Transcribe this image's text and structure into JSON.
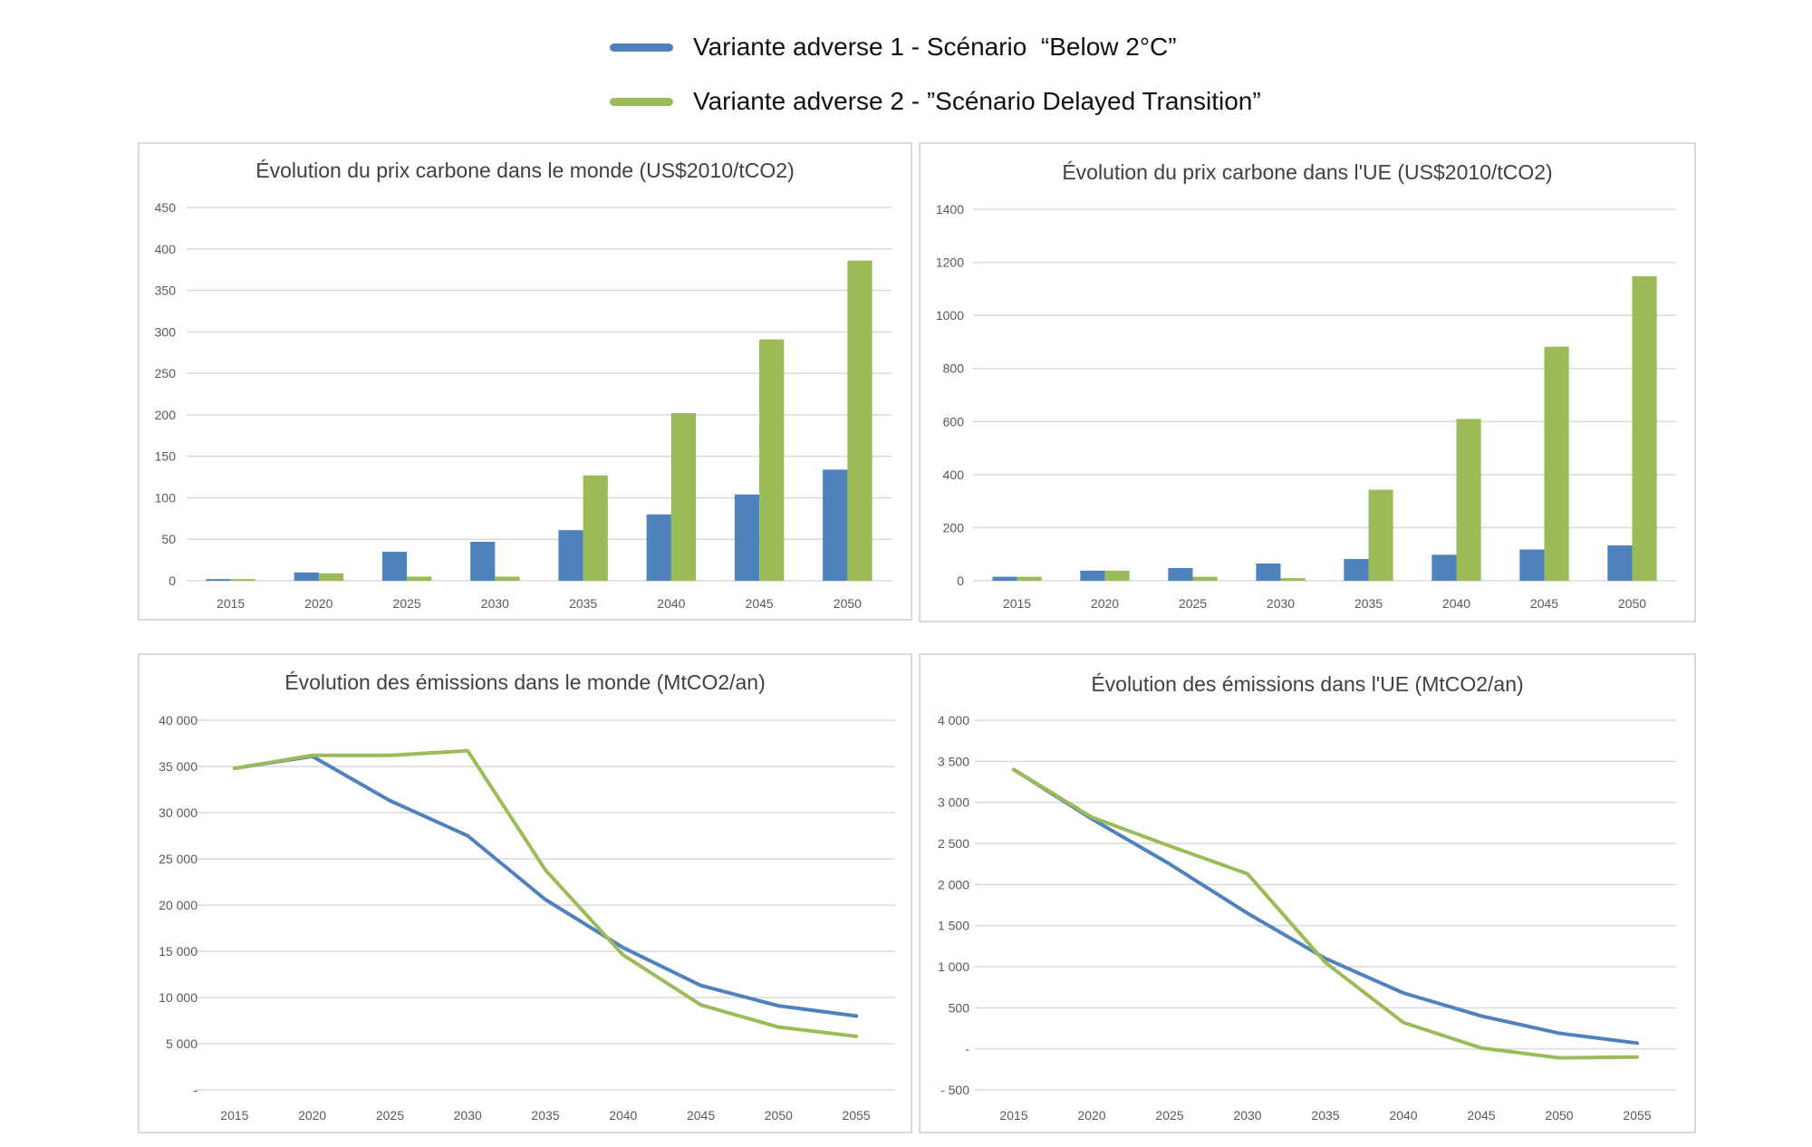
{
  "legend": {
    "series1": {
      "label": "Variante adverse 1 - Scénario  “Below 2°C”",
      "color": "#4f81bd"
    },
    "series2": {
      "label": "Variante adverse 2 - ”Scénario Delayed Transition”",
      "color": "#9bbb59"
    }
  },
  "chart_data": [
    {
      "id": "world-price",
      "type": "bar",
      "title": "Évolution du prix carbone dans le monde (US$2010/tCO2)",
      "categories": [
        "2015",
        "2020",
        "2025",
        "2030",
        "2035",
        "2040",
        "2045",
        "2050"
      ],
      "series": [
        {
          "name": "Variante adverse 1 - Scénario  “Below 2°C”",
          "values": [
            2,
            10,
            35,
            47,
            61,
            80,
            104,
            134
          ]
        },
        {
          "name": "Variante adverse 2 - ”Scénario Delayed Transition”",
          "values": [
            2,
            9,
            5,
            5,
            127,
            202,
            291,
            386
          ]
        }
      ],
      "yticks": [
        "0",
        "50",
        "100",
        "150",
        "200",
        "250",
        "300",
        "350",
        "400",
        "450"
      ],
      "ylim": [
        0,
        450
      ],
      "grid": true
    },
    {
      "id": "eu-price",
      "type": "bar",
      "title": "Évolution du prix carbone dans l'UE (US$2010/tCO2)",
      "categories": [
        "2015",
        "2020",
        "2025",
        "2030",
        "2035",
        "2040",
        "2045",
        "2050"
      ],
      "series": [
        {
          "name": "Variante adverse 1 - Scénario  “Below 2°C”",
          "values": [
            15,
            38,
            48,
            65,
            82,
            98,
            118,
            133
          ]
        },
        {
          "name": "Variante adverse 2 - ”Scénario Delayed Transition”",
          "values": [
            15,
            38,
            15,
            10,
            343,
            610,
            882,
            1148
          ]
        }
      ],
      "yticks": [
        "0",
        "200",
        "400",
        "600",
        "800",
        "1000",
        "1200",
        "1400"
      ],
      "ylim": [
        0,
        1400
      ],
      "grid": true
    },
    {
      "id": "world-emissions",
      "type": "line",
      "title": "Évolution des émissions dans le monde (MtCO2/an)",
      "categories": [
        "2015",
        "2020",
        "2025",
        "2030",
        "2035",
        "2040",
        "2045",
        "2050",
        "2055"
      ],
      "series": [
        {
          "name": "Variante adverse 1 - Scénario  “Below 2°C”",
          "values": [
            34800,
            36100,
            31300,
            27500,
            20600,
            15400,
            11300,
            9100,
            8000
          ]
        },
        {
          "name": "Variante adverse 2 - ”Scénario Delayed Transition”",
          "values": [
            34800,
            36200,
            36200,
            36700,
            23800,
            14600,
            9200,
            6800,
            5800
          ]
        }
      ],
      "yticks": [
        "-",
        "5 000",
        "10 000",
        "15 000",
        "20 000",
        "25 000",
        "30 000",
        "35 000",
        "40 000"
      ],
      "ylim": [
        0,
        40000
      ],
      "grid": true
    },
    {
      "id": "eu-emissions",
      "type": "line",
      "title": "Évolution des émissions dans l'UE (MtCO2/an)",
      "categories": [
        "2015",
        "2020",
        "2025",
        "2030",
        "2035",
        "2040",
        "2045",
        "2050",
        "2055"
      ],
      "series": [
        {
          "name": "Variante adverse 1 - Scénario  “Below 2°C”",
          "values": [
            3400,
            2800,
            2250,
            1650,
            1100,
            680,
            400,
            190,
            70
          ]
        },
        {
          "name": "Variante adverse 2 - ”Scénario Delayed Transition”",
          "values": [
            3400,
            2820,
            2470,
            2130,
            1050,
            320,
            10,
            -110,
            -100
          ]
        }
      ],
      "yticks": [
        "- 500",
        "-",
        "500",
        "1 000",
        "1 500",
        "2 000",
        "2 500",
        "3 000",
        "3 500",
        "4 000"
      ],
      "ylim": [
        -500,
        4000
      ],
      "grid": true
    }
  ]
}
